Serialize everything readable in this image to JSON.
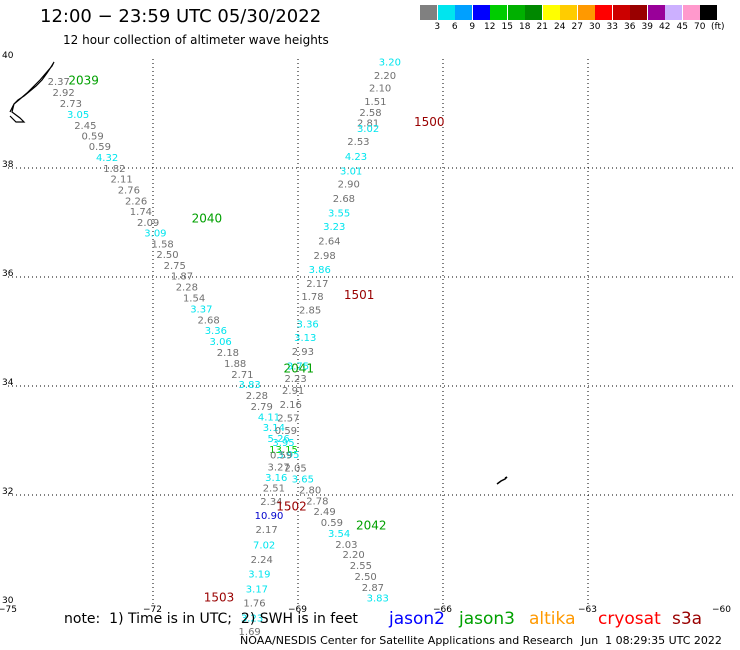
{
  "title": "12:00 − 23:59 UTC 05/30/2022",
  "subtitle": "12 hour collection of altimeter wave heights",
  "legend": {
    "unit": "(ft)",
    "bins": [
      {
        "label": "3",
        "color": "#808080"
      },
      {
        "label": "6",
        "color": "#00e5ee"
      },
      {
        "label": "9",
        "color": "#00a0ff"
      },
      {
        "label": "12",
        "color": "#0000ff"
      },
      {
        "label": "15",
        "color": "#00cc00"
      },
      {
        "label": "18",
        "color": "#00b000"
      },
      {
        "label": "21",
        "color": "#008800"
      },
      {
        "label": "24",
        "color": "#ffff00"
      },
      {
        "label": "27",
        "color": "#ffcc00"
      },
      {
        "label": "30",
        "color": "#ff9900"
      },
      {
        "label": "33",
        "color": "#ff0000"
      },
      {
        "label": "36",
        "color": "#cc0000"
      },
      {
        "label": "39",
        "color": "#990000"
      },
      {
        "label": "42",
        "color": "#990099"
      },
      {
        "label": "45",
        "color": "#ccb0ff"
      },
      {
        "label": "70",
        "color": "#ff99cc"
      },
      {
        "label": "",
        "color": "#000000"
      }
    ]
  },
  "map": {
    "lon_range": [
      -75,
      -60
    ],
    "lat_range": [
      30,
      40
    ],
    "x_ticks": [
      "−75",
      "−72",
      "−69",
      "−66",
      "−63",
      "−60"
    ],
    "y_ticks": [
      "30",
      "32",
      "34",
      "36",
      "38",
      "40"
    ],
    "grid": "dotted"
  },
  "tracks": [
    {
      "satellite": "jason3",
      "passes": [
        {
          "id": "2039",
          "lon": -73.75,
          "lat": 39.53
        },
        {
          "id": "2040",
          "lon": -71.2,
          "lat": 37.0
        },
        {
          "id": "2041",
          "lon": -69.3,
          "lat": 34.25
        },
        {
          "id": "2042",
          "lon": -67.8,
          "lat": 31.37
        }
      ],
      "readings": [
        {
          "v": "2.37",
          "lon": -73.95,
          "lat": 39.52,
          "c": "#707070"
        },
        {
          "v": "2.92",
          "lon": -73.85,
          "lat": 39.32,
          "c": "#707070"
        },
        {
          "v": "2.73",
          "lon": -73.7,
          "lat": 39.12,
          "c": "#707070"
        },
        {
          "v": "3.05",
          "lon": -73.55,
          "lat": 38.92,
          "c": "#00e5ee"
        },
        {
          "v": "2.45",
          "lon": -73.4,
          "lat": 38.72,
          "c": "#707070"
        },
        {
          "v": "0.59",
          "lon": -73.25,
          "lat": 38.52,
          "c": "#707070"
        },
        {
          "v": "0.59",
          "lon": -73.1,
          "lat": 38.33,
          "c": "#707070"
        },
        {
          "v": "4.32",
          "lon": -72.95,
          "lat": 38.13,
          "c": "#00e5ee"
        },
        {
          "v": "1.82",
          "lon": -72.8,
          "lat": 37.93,
          "c": "#707070"
        },
        {
          "v": "2.11",
          "lon": -72.65,
          "lat": 37.73,
          "c": "#707070"
        },
        {
          "v": "2.76",
          "lon": -72.5,
          "lat": 37.53,
          "c": "#707070"
        },
        {
          "v": "2.26",
          "lon": -72.35,
          "lat": 37.33,
          "c": "#707070"
        },
        {
          "v": "1.74",
          "lon": -72.25,
          "lat": 37.14,
          "c": "#707070"
        },
        {
          "v": "2.09",
          "lon": -72.1,
          "lat": 36.94,
          "c": "#707070"
        },
        {
          "v": "3.09",
          "lon": -71.95,
          "lat": 36.74,
          "c": "#00e5ee"
        },
        {
          "v": "1.58",
          "lon": -71.8,
          "lat": 36.54,
          "c": "#707070"
        },
        {
          "v": "2.50",
          "lon": -71.7,
          "lat": 36.35,
          "c": "#707070"
        },
        {
          "v": "2.75",
          "lon": -71.55,
          "lat": 36.15,
          "c": "#707070"
        },
        {
          "v": "1.87",
          "lon": -71.4,
          "lat": 35.95,
          "c": "#707070"
        },
        {
          "v": "2.28",
          "lon": -71.3,
          "lat": 35.75,
          "c": "#707070"
        },
        {
          "v": "1.54",
          "lon": -71.15,
          "lat": 35.55,
          "c": "#707070"
        },
        {
          "v": "3.37",
          "lon": -71.0,
          "lat": 35.35,
          "c": "#00e5ee"
        },
        {
          "v": "2.68",
          "lon": -70.85,
          "lat": 35.15,
          "c": "#707070"
        },
        {
          "v": "3.36",
          "lon": -70.7,
          "lat": 34.95,
          "c": "#00e5ee"
        },
        {
          "v": "3.06",
          "lon": -70.6,
          "lat": 34.75,
          "c": "#00e5ee"
        },
        {
          "v": "2.18",
          "lon": -70.45,
          "lat": 34.55,
          "c": "#707070"
        },
        {
          "v": "1.88",
          "lon": -70.3,
          "lat": 34.35,
          "c": "#707070"
        },
        {
          "v": "2.71",
          "lon": -70.15,
          "lat": 34.15,
          "c": "#707070"
        },
        {
          "v": "3.83",
          "lon": -70.0,
          "lat": 33.96,
          "c": "#00e5ee"
        },
        {
          "v": "2.28",
          "lon": -69.85,
          "lat": 33.76,
          "c": "#707070"
        },
        {
          "v": "2.79",
          "lon": -69.75,
          "lat": 33.56,
          "c": "#707070"
        },
        {
          "v": "4.11",
          "lon": -69.6,
          "lat": 33.37,
          "c": "#00e5ee"
        },
        {
          "v": "3.14",
          "lon": -69.5,
          "lat": 33.17,
          "c": "#00e5ee"
        },
        {
          "v": "5.26",
          "lon": -69.4,
          "lat": 32.97,
          "c": "#00e5ee"
        },
        {
          "v": "13.15",
          "lon": -69.3,
          "lat": 32.77,
          "c": "#00cc00"
        },
        {
          "v": "3.95",
          "lon": -69.2,
          "lat": 32.68,
          "c": "#00e5ee"
        },
        {
          "v": "2.05",
          "lon": -69.05,
          "lat": 32.43,
          "c": "#707070"
        },
        {
          "v": "3.65",
          "lon": -68.9,
          "lat": 32.23,
          "c": "#00e5ee"
        },
        {
          "v": "2.80",
          "lon": -68.75,
          "lat": 32.03,
          "c": "#707070"
        },
        {
          "v": "2.78",
          "lon": -68.6,
          "lat": 31.83,
          "c": "#707070"
        },
        {
          "v": "2.49",
          "lon": -68.45,
          "lat": 31.63,
          "c": "#707070"
        },
        {
          "v": "0.59",
          "lon": -68.3,
          "lat": 31.43,
          "c": "#707070"
        },
        {
          "v": "3.54",
          "lon": -68.15,
          "lat": 31.23,
          "c": "#00e5ee"
        },
        {
          "v": "2.03",
          "lon": -68.0,
          "lat": 31.03,
          "c": "#707070"
        },
        {
          "v": "2.20",
          "lon": -67.85,
          "lat": 30.84,
          "c": "#707070"
        },
        {
          "v": "2.55",
          "lon": -67.7,
          "lat": 30.64,
          "c": "#707070"
        },
        {
          "v": "2.50",
          "lon": -67.6,
          "lat": 30.44,
          "c": "#707070"
        },
        {
          "v": "2.87",
          "lon": -67.45,
          "lat": 30.24,
          "c": "#707070"
        },
        {
          "v": "3.83",
          "lon": -67.35,
          "lat": 30.05,
          "c": "#00e5ee"
        }
      ]
    },
    {
      "satellite": "cryosat",
      "passes": [
        {
          "id": "1500",
          "lon": -66.6,
          "lat": 38.77
        },
        {
          "id": "1501",
          "lon": -68.05,
          "lat": 35.6
        },
        {
          "id": "1502",
          "lon": -69.45,
          "lat": 31.72
        },
        {
          "id": "1503",
          "lon": -70.95,
          "lat": 30.05
        }
      ],
      "readings": [
        {
          "v": "3.20",
          "lon": -67.1,
          "lat": 39.88,
          "c": "#00e5ee"
        },
        {
          "v": "2.20",
          "lon": -67.2,
          "lat": 39.63,
          "c": "#707070"
        },
        {
          "v": "2.10",
          "lon": -67.3,
          "lat": 39.4,
          "c": "#707070"
        },
        {
          "v": "1.51",
          "lon": -67.4,
          "lat": 39.16,
          "c": "#707070"
        },
        {
          "v": "2.58",
          "lon": -67.5,
          "lat": 38.95,
          "c": "#707070"
        },
        {
          "v": "2.81",
          "lon": -67.55,
          "lat": 38.76,
          "c": "#707070"
        },
        {
          "v": "3.02",
          "lon": -67.55,
          "lat": 38.66,
          "c": "#00e5ee"
        },
        {
          "v": "2.53",
          "lon": -67.75,
          "lat": 38.42,
          "c": "#707070"
        },
        {
          "v": "4.23",
          "lon": -67.8,
          "lat": 38.15,
          "c": "#00e5ee"
        },
        {
          "v": "3.01",
          "lon": -67.9,
          "lat": 37.88,
          "c": "#00e5ee"
        },
        {
          "v": "2.90",
          "lon": -67.95,
          "lat": 37.64,
          "c": "#707070"
        },
        {
          "v": "2.68",
          "lon": -68.05,
          "lat": 37.38,
          "c": "#707070"
        },
        {
          "v": "3.55",
          "lon": -68.15,
          "lat": 37.11,
          "c": "#00e5ee"
        },
        {
          "v": "3.23",
          "lon": -68.25,
          "lat": 36.86,
          "c": "#00e5ee"
        },
        {
          "v": "2.64",
          "lon": -68.35,
          "lat": 36.6,
          "c": "#707070"
        },
        {
          "v": "2.98",
          "lon": -68.45,
          "lat": 36.33,
          "c": "#707070"
        },
        {
          "v": "3.86",
          "lon": -68.55,
          "lat": 36.07,
          "c": "#00e5ee"
        },
        {
          "v": "2.17",
          "lon": -68.6,
          "lat": 35.82,
          "c": "#707070"
        },
        {
          "v": "1.78",
          "lon": -68.7,
          "lat": 35.58,
          "c": "#707070"
        },
        {
          "v": "2.85",
          "lon": -68.75,
          "lat": 35.33,
          "c": "#707070"
        },
        {
          "v": "3.36",
          "lon": -68.8,
          "lat": 35.07,
          "c": "#00e5ee"
        },
        {
          "v": "3.13",
          "lon": -68.85,
          "lat": 34.83,
          "c": "#00e5ee"
        },
        {
          "v": "2.93",
          "lon": -68.9,
          "lat": 34.57,
          "c": "#707070"
        },
        {
          "v": "3.75",
          "lon": -69.0,
          "lat": 34.3,
          "c": "#00e5ee"
        },
        {
          "v": "2.23",
          "lon": -69.05,
          "lat": 34.07,
          "c": "#707070"
        },
        {
          "v": "2.91",
          "lon": -69.1,
          "lat": 33.85,
          "c": "#707070"
        },
        {
          "v": "2.16",
          "lon": -69.15,
          "lat": 33.6,
          "c": "#707070"
        },
        {
          "v": "2.57",
          "lon": -69.2,
          "lat": 33.35,
          "c": "#707070"
        },
        {
          "v": "0.59",
          "lon": -69.25,
          "lat": 33.12,
          "c": "#707070"
        },
        {
          "v": "3.95",
          "lon": -69.3,
          "lat": 32.9,
          "c": "#00e5ee"
        },
        {
          "v": "0.59",
          "lon": -69.35,
          "lat": 32.67,
          "c": "#707070"
        },
        {
          "v": "3.27",
          "lon": -69.4,
          "lat": 32.45,
          "c": "#707070"
        },
        {
          "v": "3.16",
          "lon": -69.45,
          "lat": 32.26,
          "c": "#00e5ee"
        },
        {
          "v": "2.51",
          "lon": -69.5,
          "lat": 32.06,
          "c": "#707070"
        },
        {
          "v": "2.34",
          "lon": -69.55,
          "lat": 31.82,
          "c": "#707070"
        },
        {
          "v": "10.90",
          "lon": -69.6,
          "lat": 31.56,
          "c": "#0000cc"
        },
        {
          "v": "2.17",
          "lon": -69.65,
          "lat": 31.3,
          "c": "#707070"
        },
        {
          "v": "7.02",
          "lon": -69.7,
          "lat": 31.02,
          "c": "#00e5ee"
        },
        {
          "v": "2.24",
          "lon": -69.75,
          "lat": 30.75,
          "c": "#707070"
        },
        {
          "v": "3.19",
          "lon": -69.8,
          "lat": 30.49,
          "c": "#00e5ee"
        },
        {
          "v": "3.17",
          "lon": -69.85,
          "lat": 30.21,
          "c": "#00e5ee"
        },
        {
          "v": "1.76",
          "lon": -69.9,
          "lat": 29.95,
          "c": "#707070"
        },
        {
          "v": "3.23",
          "lon": -69.95,
          "lat": 29.68,
          "c": "#00e5ee"
        },
        {
          "v": "1.69",
          "lon": -70.0,
          "lat": 29.43,
          "c": "#707070"
        }
      ]
    }
  ],
  "note": "note:  1) Time is in UTC;  2) SWH is in feet",
  "satellites": [
    {
      "name": "jason2",
      "color": "#0000ff"
    },
    {
      "name": "jason3",
      "color": "#00a000"
    },
    {
      "name": "altika",
      "color": "#ff9900"
    },
    {
      "name": "cryosat",
      "color": "#ff0000"
    },
    {
      "name": "s3a",
      "color": "#990000"
    }
  ],
  "credit": "NOAA/NESDIS Center for Satellite Applications and Research",
  "timestamp": "Jun  1 08:29:35 UTC 2022"
}
